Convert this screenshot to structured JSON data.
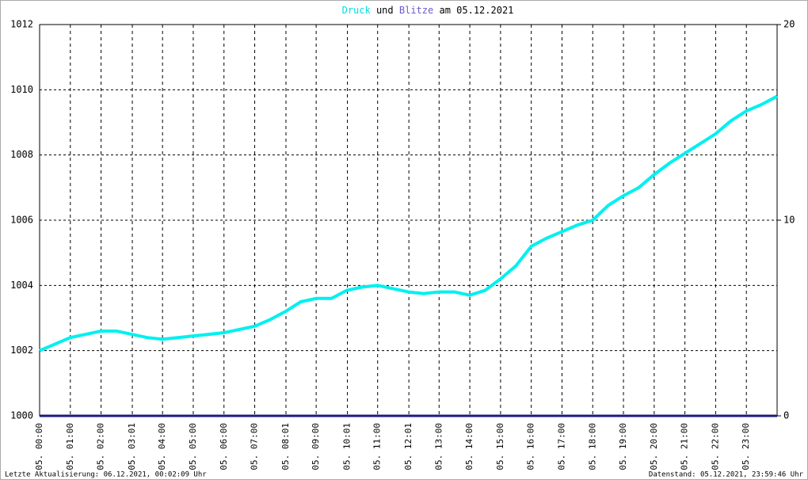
{
  "chart_data": {
    "type": "line",
    "title_connector": "und",
    "title_suffix": "am 05.12.2021",
    "footer_left": "Letzte Aktualisierung: 06.12.2021, 00:02:09 Uhr",
    "footer_right": "Datenstand: 05.12.2021, 23:59:46 Uhr",
    "x": [
      0,
      0.5,
      1,
      1.5,
      2,
      2.5,
      3,
      3.5,
      4,
      4.5,
      5,
      5.5,
      6,
      6.5,
      7,
      7.5,
      8,
      8.5,
      9,
      9.5,
      10,
      10.5,
      11,
      11.5,
      12,
      12.5,
      13,
      13.5,
      14,
      14.5,
      15,
      15.5,
      16,
      16.5,
      17,
      17.5,
      18,
      18.5,
      19,
      19.5,
      20,
      20.5,
      21,
      21.5,
      22,
      22.5,
      23,
      23.5,
      24
    ],
    "series": [
      {
        "name": "Druck",
        "color": "#00f0f0",
        "axis": "y",
        "values": [
          1002.0,
          1002.2,
          1002.4,
          1002.5,
          1002.6,
          1002.6,
          1002.5,
          1002.4,
          1002.35,
          1002.4,
          1002.45,
          1002.5,
          1002.55,
          1002.65,
          1002.75,
          1002.95,
          1003.2,
          1003.5,
          1003.6,
          1003.6,
          1003.85,
          1003.95,
          1004.0,
          1003.9,
          1003.8,
          1003.75,
          1003.8,
          1003.8,
          1003.7,
          1003.85,
          1004.2,
          1004.6,
          1005.2,
          1005.45,
          1005.65,
          1005.85,
          1006.0,
          1006.45,
          1006.75,
          1007.0,
          1007.4,
          1007.75,
          1008.05,
          1008.35,
          1008.65,
          1009.05,
          1009.35,
          1009.55,
          1009.8
        ]
      },
      {
        "name": "Blitze",
        "color": "#1a1a80",
        "axis": "y2",
        "values": [
          0,
          0,
          0,
          0,
          0,
          0,
          0,
          0,
          0,
          0,
          0,
          0,
          0,
          0,
          0,
          0,
          0,
          0,
          0,
          0,
          0,
          0,
          0,
          0,
          0,
          0,
          0,
          0,
          0,
          0,
          0,
          0,
          0,
          0,
          0,
          0,
          0,
          0,
          0,
          0,
          0,
          0,
          0,
          0,
          0,
          0,
          0,
          0,
          0
        ]
      }
    ],
    "xlim": [
      0,
      24
    ],
    "xticks": [
      {
        "value": 0,
        "label": "05. 00:00"
      },
      {
        "value": 1,
        "label": "05. 01:00"
      },
      {
        "value": 2,
        "label": "05. 02:00"
      },
      {
        "value": 3.0167,
        "label": "05. 03:01"
      },
      {
        "value": 4,
        "label": "05. 04:00"
      },
      {
        "value": 5,
        "label": "05. 05:00"
      },
      {
        "value": 6,
        "label": "05. 06:00"
      },
      {
        "value": 7,
        "label": "05. 07:00"
      },
      {
        "value": 8.0167,
        "label": "05. 08:01"
      },
      {
        "value": 9,
        "label": "05. 09:00"
      },
      {
        "value": 10.0167,
        "label": "05. 10:01"
      },
      {
        "value": 11,
        "label": "05. 11:00"
      },
      {
        "value": 12.0167,
        "label": "05. 12:01"
      },
      {
        "value": 13,
        "label": "05. 13:00"
      },
      {
        "value": 14,
        "label": "05. 14:00"
      },
      {
        "value": 15,
        "label": "05. 15:00"
      },
      {
        "value": 16,
        "label": "05. 16:00"
      },
      {
        "value": 17,
        "label": "05. 17:00"
      },
      {
        "value": 18,
        "label": "05. 18:00"
      },
      {
        "value": 19,
        "label": "05. 19:00"
      },
      {
        "value": 20,
        "label": "05. 20:00"
      },
      {
        "value": 21,
        "label": "05. 21:00"
      },
      {
        "value": 22,
        "label": "05. 22:00"
      },
      {
        "value": 23,
        "label": "05. 23:00"
      }
    ],
    "ylim": [
      1000,
      1012
    ],
    "yticks": [
      1000,
      1002,
      1004,
      1006,
      1008,
      1010,
      1012
    ],
    "y2lim": [
      0,
      20
    ],
    "y2ticks": [
      0,
      10,
      20
    ],
    "grid": true
  }
}
